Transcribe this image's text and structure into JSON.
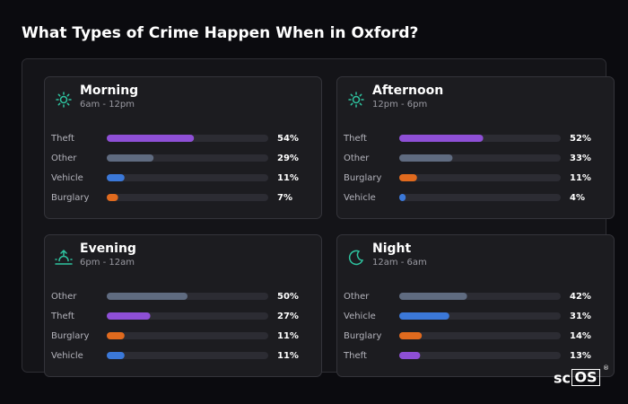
{
  "title": "What Types of Crime Happen When in Oxford?",
  "panels": [
    {
      "name": "Morning",
      "time": "6am - 12pm",
      "xlim": [
        0,
        100
      ],
      "categories": [
        "Theft",
        "Other",
        "Vehicle",
        "Burglary"
      ],
      "values": [
        54,
        29,
        11,
        7
      ],
      "value_labels": [
        "54%",
        "29%",
        "11%",
        "7%"
      ],
      "colors": [
        "#8e4fd6",
        "#5f6b80",
        "#3b78d8",
        "#e06a1e"
      ]
    },
    {
      "name": "Afternoon",
      "time": "12pm - 6pm",
      "xlim": [
        0,
        100
      ],
      "categories": [
        "Theft",
        "Other",
        "Burglary",
        "Vehicle"
      ],
      "values": [
        52,
        33,
        11,
        4
      ],
      "value_labels": [
        "52%",
        "33%",
        "11%",
        "4%"
      ],
      "colors": [
        "#8e4fd6",
        "#5f6b80",
        "#e06a1e",
        "#3b78d8"
      ]
    },
    {
      "name": "Evening",
      "time": "6pm - 12am",
      "xlim": [
        0,
        100
      ],
      "categories": [
        "Other",
        "Theft",
        "Burglary",
        "Vehicle"
      ],
      "values": [
        50,
        27,
        11,
        11
      ],
      "value_labels": [
        "50%",
        "27%",
        "11%",
        "11%"
      ],
      "colors": [
        "#5f6b80",
        "#8e4fd6",
        "#e06a1e",
        "#3b78d8"
      ]
    },
    {
      "name": "Night",
      "time": "12am - 6am",
      "xlim": [
        0,
        100
      ],
      "categories": [
        "Other",
        "Vehicle",
        "Burglary",
        "Theft"
      ],
      "values": [
        42,
        31,
        14,
        13
      ],
      "value_labels": [
        "42%",
        "31%",
        "14%",
        "13%"
      ],
      "colors": [
        "#5f6b80",
        "#3b78d8",
        "#e06a1e",
        "#8e4fd6"
      ]
    }
  ],
  "brand": {
    "prefix": "sc",
    "boxed": "OS",
    "mark": "®"
  }
}
